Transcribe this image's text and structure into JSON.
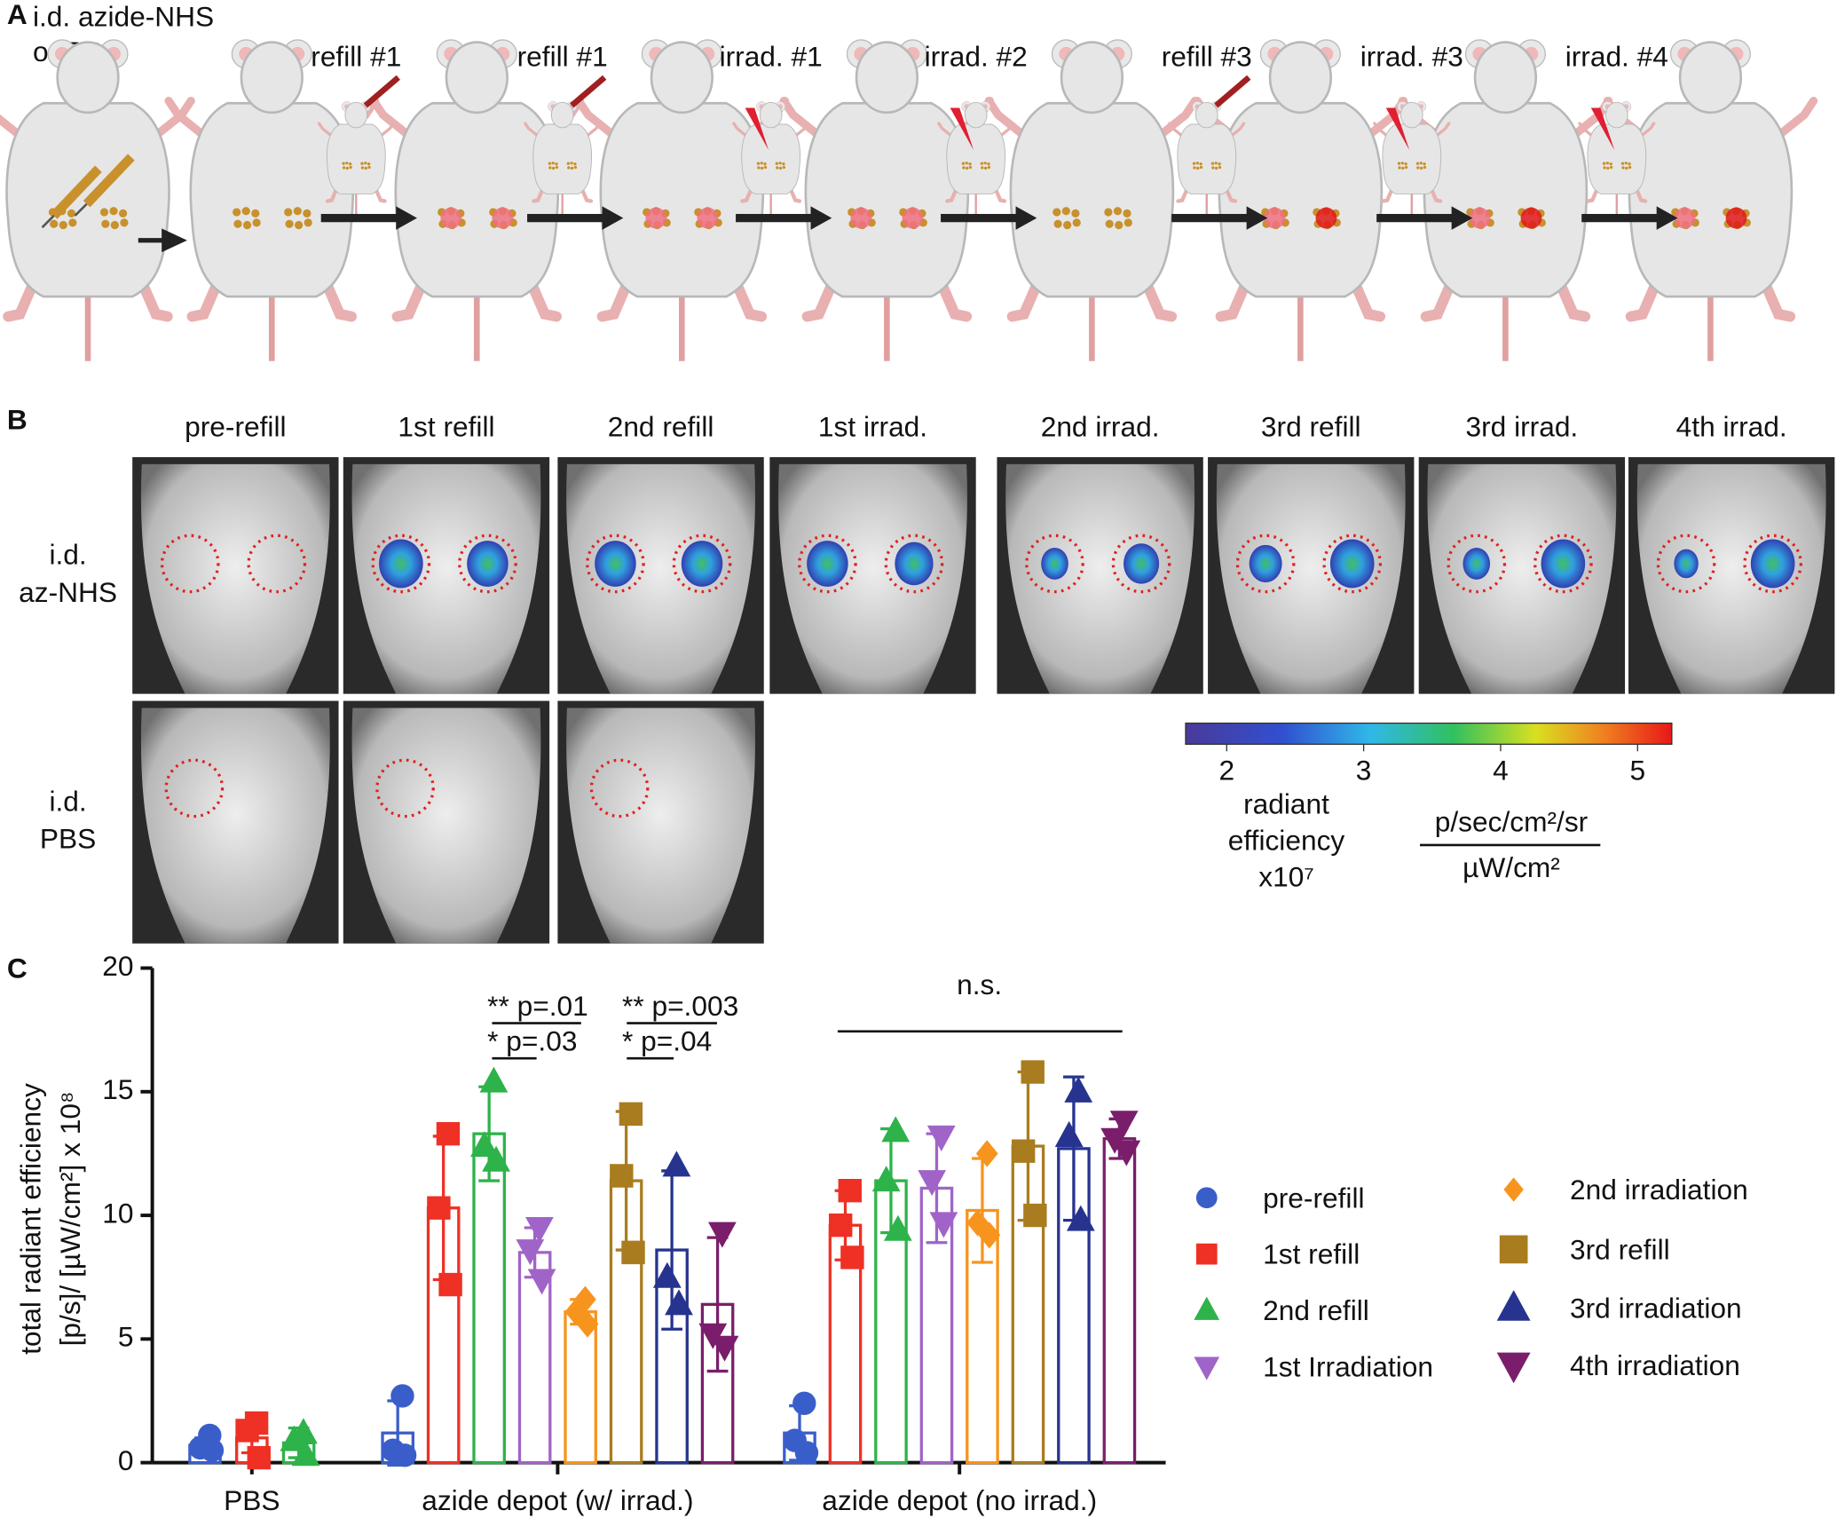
{
  "panel_labels": [
    "A",
    "B",
    "C"
  ],
  "panel_a": {
    "start_label": [
      "i.d. azide-NHS",
      "or PBS"
    ],
    "steps": [
      "refill #1",
      "refill #1",
      "irrad. #1",
      "irrad. #2",
      "refill #3",
      "irrad. #3",
      "irrad. #4"
    ]
  },
  "panel_b": {
    "columns": [
      "pre-refill",
      "1st refill",
      "2nd refill",
      "1st irrad.",
      "2nd irrad.",
      "3rd refill",
      "3rd irrad.",
      "4th irrad."
    ],
    "rows": [
      [
        "i.d.",
        "az-NHS"
      ],
      [
        "i.d.",
        "PBS"
      ]
    ],
    "colorbar": {
      "lim": [
        1.7,
        5.25
      ],
      "ticks": [
        2,
        3,
        4,
        5
      ],
      "label": [
        "radiant",
        "efficiency",
        "x10⁷"
      ],
      "unit_top": "p/sec/cm²/sr",
      "unit_bottom": "µW/cm²"
    }
  },
  "chart_data": {
    "type": "bar",
    "ylabel": [
      "total radiant efficiency",
      "[p/s]/ [µW/cm²] x 10⁸"
    ],
    "categories": [
      "PBS",
      "azide depot (w/ irrad.)",
      "azide depot (no irrad.)"
    ],
    "ylim": [
      0,
      20
    ],
    "yticks": [
      0,
      5,
      10,
      15,
      20
    ],
    "legend": "right",
    "series": [
      {
        "name": "pre-refill",
        "color": "#3a5ec9",
        "marker": "circle",
        "values": [
          0.7,
          1.2,
          1.2
        ],
        "errors": [
          0.3,
          1.3,
          1.1
        ],
        "points": [
          [
            1.1,
            0.6,
            0.5
          ],
          [
            2.7,
            0.5,
            0.3
          ],
          [
            2.4,
            0.9,
            0.4
          ]
        ]
      },
      {
        "name": "1st refill",
        "color": "#ee3124",
        "marker": "square",
        "values": [
          1.0,
          10.3,
          9.6
        ],
        "errors": [
          0.6,
          2.9,
          1.4
        ],
        "points": [
          [
            1.6,
            1.3,
            0.2
          ],
          [
            13.3,
            10.3,
            7.2
          ],
          [
            11.0,
            9.6,
            8.3
          ]
        ]
      },
      {
        "name": "2nd refill",
        "color": "#2db34a",
        "marker": "triangle",
        "values": [
          0.8,
          13.3,
          11.4
        ],
        "errors": [
          0.6,
          1.9,
          2.1
        ],
        "points": [
          [
            1.2,
            0.9,
            0.3
          ],
          [
            15.4,
            12.8,
            12.2
          ],
          [
            13.4,
            11.4,
            9.4
          ]
        ]
      },
      {
        "name": "1st Irradiation",
        "color": "#a064c8",
        "marker": "down",
        "values": [
          null,
          8.5,
          11.1
        ],
        "errors": [
          null,
          1.0,
          2.2
        ],
        "points": [
          null,
          [
            9.5,
            8.6,
            7.4
          ],
          [
            13.2,
            11.4,
            9.7
          ]
        ]
      },
      {
        "name": "2nd irradiation",
        "color": "#f7941d",
        "marker": "diamond",
        "values": [
          null,
          6.1,
          10.2
        ],
        "errors": [
          null,
          0.5,
          2.1
        ],
        "points": [
          null,
          [
            6.6,
            6.1,
            5.6
          ],
          [
            12.5,
            9.7,
            9.2
          ]
        ]
      },
      {
        "name": "3rd refill",
        "color": "#a97c1f",
        "marker": "square",
        "values": [
          null,
          11.4,
          12.8
        ],
        "errors": [
          null,
          2.8,
          3.0
        ],
        "points": [
          null,
          [
            14.1,
            11.6,
            8.5
          ],
          [
            15.8,
            12.6,
            10.0
          ]
        ]
      },
      {
        "name": "3rd irradiation",
        "color": "#26348f",
        "marker": "triangle",
        "values": [
          null,
          8.6,
          12.7
        ],
        "errors": [
          null,
          3.2,
          2.9
        ],
        "points": [
          null,
          [
            12.0,
            7.5,
            6.4
          ],
          [
            15.0,
            13.2,
            9.8
          ]
        ]
      },
      {
        "name": "4th irradiation",
        "color": "#7a1e6b",
        "marker": "down",
        "values": [
          null,
          6.4,
          13.1
        ],
        "errors": [
          null,
          2.7,
          0.8
        ],
        "points": [
          null,
          [
            9.3,
            5.2,
            4.7
          ],
          [
            13.8,
            13.1,
            12.6
          ]
        ]
      }
    ],
    "annotations": [
      "** p=.01",
      "* p=.03",
      "** p=.003",
      "* p=.04",
      "n.s."
    ]
  }
}
